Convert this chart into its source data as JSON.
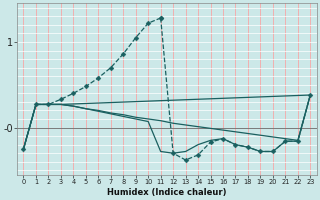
{
  "xlabel": "Humidex (Indice chaleur)",
  "background_color": "#cce8e8",
  "plot_bg_color": "#cce8e8",
  "grid_color_major": "#ff9999",
  "grid_color_minor": "#ffffff",
  "line_color": "#1a6060",
  "xlim": [
    -0.5,
    23.5
  ],
  "ylim": [
    -0.55,
    1.45
  ],
  "ytick_positions": [
    1.0,
    0.0
  ],
  "ytick_labels": [
    "1",
    "-0"
  ],
  "xticks": [
    0,
    1,
    2,
    3,
    4,
    5,
    6,
    7,
    8,
    9,
    10,
    11,
    12,
    13,
    14,
    15,
    16,
    17,
    18,
    19,
    20,
    21,
    22,
    23
  ],
  "series1_x": [
    0,
    1,
    2,
    3,
    4,
    5,
    6,
    7,
    8,
    9,
    10,
    11
  ],
  "series1_y": [
    -0.25,
    0.27,
    0.27,
    0.33,
    0.4,
    0.48,
    0.58,
    0.7,
    0.86,
    1.05,
    1.22,
    1.28
  ],
  "series2_x": [
    11,
    12,
    13,
    14,
    15,
    16,
    17,
    18,
    19,
    20,
    21,
    22,
    23
  ],
  "series2_y": [
    1.28,
    -0.3,
    -0.38,
    -0.32,
    -0.17,
    -0.13,
    -0.2,
    -0.23,
    -0.28,
    -0.28,
    -0.16,
    -0.16,
    0.38
  ],
  "series3_x": [
    0,
    1,
    2,
    3,
    23
  ],
  "series3_y": [
    -0.25,
    0.27,
    0.27,
    0.27,
    0.38
  ],
  "series4_x": [
    0,
    1,
    2,
    3,
    4,
    5,
    6,
    7,
    8,
    9,
    10,
    11,
    12,
    13,
    14,
    15,
    16,
    17,
    18,
    19,
    20,
    21,
    22,
    23
  ],
  "series4_y": [
    -0.25,
    0.27,
    0.27,
    0.27,
    0.25,
    0.22,
    0.2,
    0.17,
    0.15,
    0.12,
    0.1,
    0.08,
    0.05,
    0.03,
    0.01,
    -0.01,
    -0.03,
    -0.05,
    -0.07,
    -0.09,
    -0.11,
    -0.13,
    -0.15,
    0.38
  ],
  "series5_x": [
    0,
    1,
    2,
    3,
    4,
    5,
    6,
    7,
    8,
    9,
    10,
    11,
    12,
    13,
    14,
    15,
    16,
    17,
    18,
    19,
    20,
    21,
    22,
    23
  ],
  "series5_y": [
    -0.25,
    0.27,
    0.27,
    0.27,
    0.25,
    0.22,
    0.19,
    0.16,
    0.13,
    0.1,
    0.07,
    -0.28,
    -0.3,
    -0.28,
    -0.2,
    -0.15,
    -0.13,
    -0.2,
    -0.23,
    -0.28,
    -0.28,
    -0.16,
    -0.16,
    0.38
  ]
}
